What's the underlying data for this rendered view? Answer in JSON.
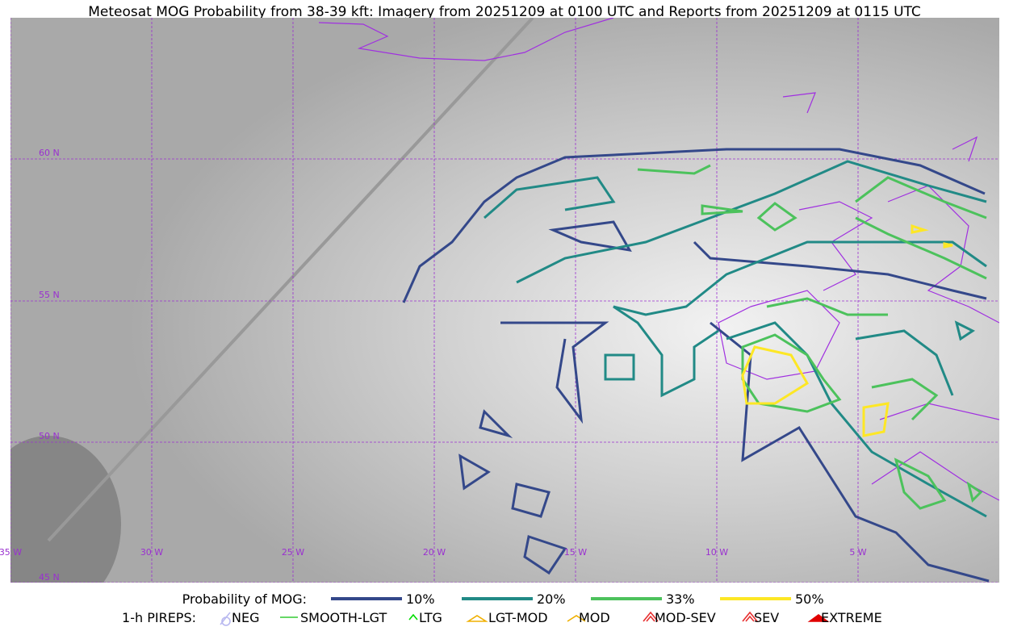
{
  "title": "Meteosat MOG Probability from 38-39 kft: Imagery from 20251209 at 0100 UTC and Reports from 20251209 at 0115 UTC",
  "map": {
    "lat_labels": [
      "60 N",
      "55 N",
      "50 N",
      "45 N"
    ],
    "lon_labels": [
      "35 W",
      "30 W",
      "25 W",
      "20 W",
      "15 W",
      "10 W",
      "5 W"
    ]
  },
  "legend": {
    "probability": {
      "label": "Probability of MOG:",
      "items": [
        {
          "label": "10%",
          "color": "#34488a"
        },
        {
          "label": "20%",
          "color": "#218a86"
        },
        {
          "label": "33%",
          "color": "#4cc25c"
        },
        {
          "label": "50%",
          "color": "#fde725"
        }
      ]
    },
    "pireps": {
      "label": "1-h PIREPS:",
      "items": [
        {
          "label": "NEG",
          "color": "#b9b9f0"
        },
        {
          "label": "SMOOTH-LGT",
          "color": "#33cc33"
        },
        {
          "label": "LTG",
          "color": "#00dd00"
        },
        {
          "label": "LGT-MOD",
          "color": "#f0b000"
        },
        {
          "label": "MOD",
          "color": "#f0b000"
        },
        {
          "label": "MOD-SEV",
          "color": "#e83030"
        },
        {
          "label": "SEV",
          "color": "#e83030"
        },
        {
          "label": "EXTREME",
          "color": "#e00000"
        }
      ]
    }
  }
}
